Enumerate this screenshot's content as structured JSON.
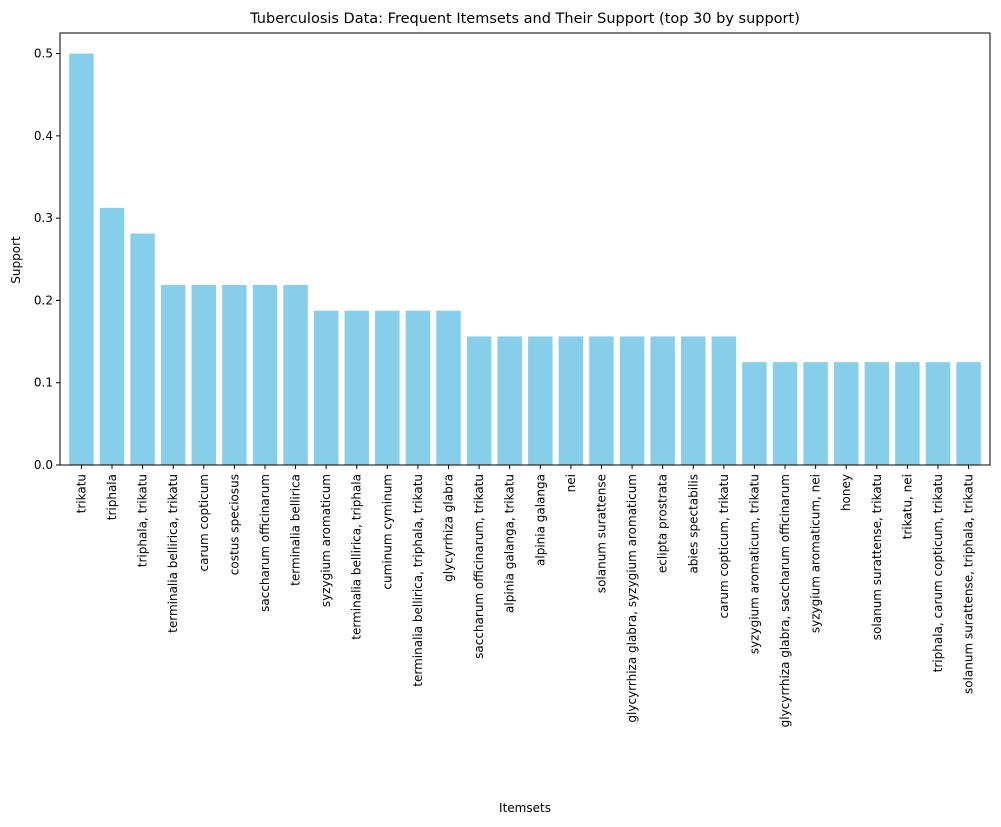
{
  "chart_data": {
    "type": "bar",
    "title": "Tuberculosis Data: Frequent Itemsets and Their Support (top 30 by support)",
    "xlabel": "Itemsets",
    "ylabel": "Support",
    "ylim": [
      0,
      0.525
    ],
    "yticks": [
      "0.0",
      "0.1",
      "0.2",
      "0.3",
      "0.4",
      "0.5"
    ],
    "grid": false,
    "bar_color": "#87CEEB",
    "categories": [
      "trikatu",
      "triphala",
      "triphala, trikatu",
      "terminalia bellirica, trikatu",
      "carum copticum",
      "costus speciosus",
      "saccharum officinarum",
      "terminalia bellirica",
      "syzygium aromaticum",
      "terminalia bellirica, triphala",
      "cuminum cyminum",
      "terminalia bellirica, triphala, trikatu",
      "glycyrrhiza glabra",
      "saccharum officinarum, trikatu",
      "alpinia galanga, trikatu",
      "alpinia galanga",
      "nei",
      "solanum surattense",
      "glycyrrhiza glabra, syzygium aromaticum",
      "eclipta prostrata",
      "abies spectabilis",
      "carum copticum, trikatu",
      "syzygium aromaticum, trikatu",
      "glycyrrhiza glabra, saccharum officinarum",
      "syzygium aromaticum, nei",
      "honey",
      "solanum surattense, trikatu",
      "trikatu, nei",
      "triphala, carum copticum, trikatu",
      "solanum surattense, triphala, trikatu"
    ],
    "values": [
      0.5,
      0.3125,
      0.28125,
      0.21875,
      0.21875,
      0.21875,
      0.21875,
      0.21875,
      0.1875,
      0.1875,
      0.1875,
      0.1875,
      0.1875,
      0.15625,
      0.15625,
      0.15625,
      0.15625,
      0.15625,
      0.15625,
      0.15625,
      0.15625,
      0.15625,
      0.125,
      0.125,
      0.125,
      0.125,
      0.125,
      0.125,
      0.125,
      0.125
    ]
  }
}
